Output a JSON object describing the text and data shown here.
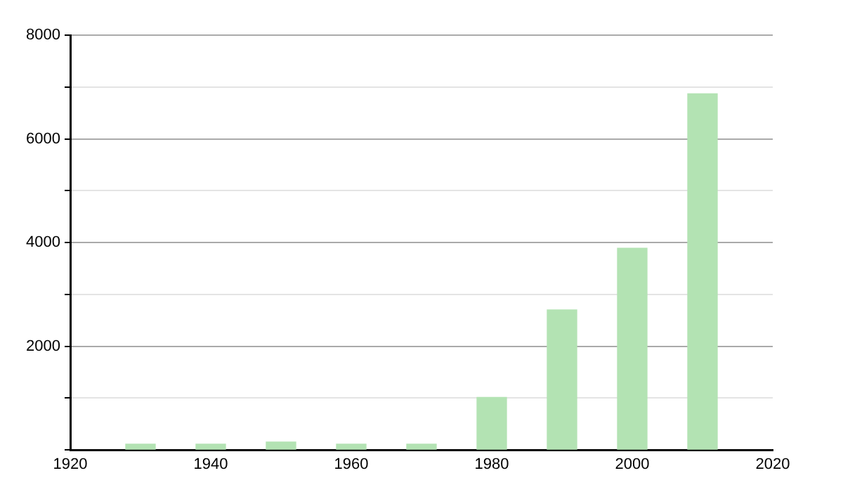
{
  "chart_data": {
    "type": "bar",
    "x": [
      1930,
      1940,
      1950,
      1960,
      1970,
      1980,
      1990,
      2000,
      2010
    ],
    "values": [
      110,
      110,
      150,
      110,
      110,
      1010,
      2700,
      3890,
      6870
    ],
    "color": "#b3e3b3",
    "xlim": [
      1920,
      2020
    ],
    "xticks": [
      1920,
      1940,
      1960,
      1980,
      2000,
      2020
    ],
    "ylim": [
      0,
      8000
    ],
    "yticks": [
      {
        "value": 0,
        "label": null
      },
      {
        "value": 1000,
        "label": null
      },
      2000,
      {
        "value": 3000,
        "label": null
      },
      4000,
      {
        "value": 5000,
        "label": null
      },
      6000,
      {
        "value": 7000,
        "label": null
      },
      8000
    ],
    "grid": "y",
    "legend": false
  }
}
